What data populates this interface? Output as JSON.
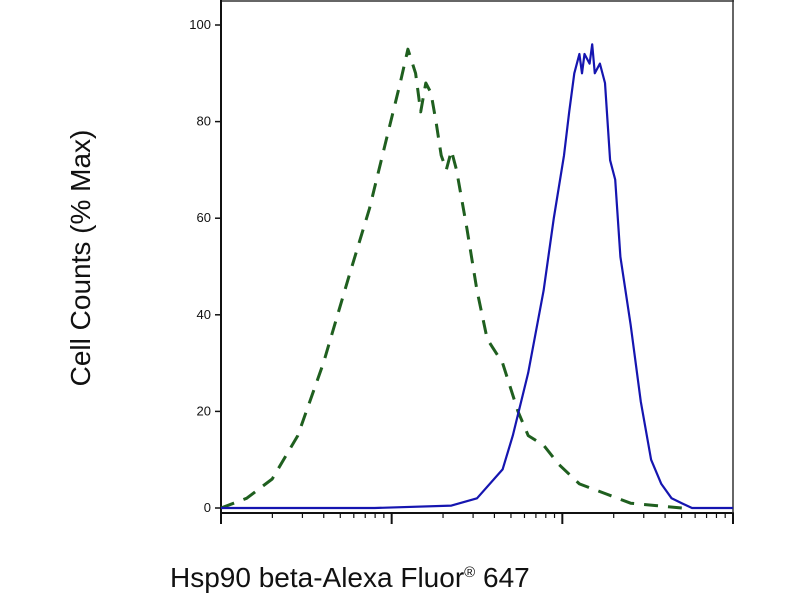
{
  "chart_data": {
    "type": "line",
    "title": "",
    "ylabel": "Cell Counts (% Max)",
    "xlabel": {
      "main": "Hsp90 beta-Alexa Fluor",
      "sup": "®",
      "tail": " 647"
    },
    "ylim": [
      0,
      100
    ],
    "xlim": [
      0,
      1
    ],
    "x_scale": "log",
    "y_ticks": [
      "0",
      "20",
      "40",
      "60",
      "80",
      "100"
    ],
    "grid": false,
    "series": [
      {
        "style": "dashed",
        "color": "#1f5f1f",
        "points": [
          [
            0.0,
            0
          ],
          [
            0.05,
            2
          ],
          [
            0.1,
            6
          ],
          [
            0.15,
            15
          ],
          [
            0.2,
            30
          ],
          [
            0.25,
            48
          ],
          [
            0.29,
            62
          ],
          [
            0.32,
            75
          ],
          [
            0.35,
            88
          ],
          [
            0.365,
            95
          ],
          [
            0.38,
            90
          ],
          [
            0.39,
            82
          ],
          [
            0.4,
            88
          ],
          [
            0.41,
            86
          ],
          [
            0.42,
            80
          ],
          [
            0.43,
            73
          ],
          [
            0.44,
            70
          ],
          [
            0.45,
            74
          ],
          [
            0.46,
            70
          ],
          [
            0.48,
            58
          ],
          [
            0.5,
            45
          ],
          [
            0.52,
            35
          ],
          [
            0.55,
            30
          ],
          [
            0.58,
            20
          ],
          [
            0.6,
            15
          ],
          [
            0.63,
            13
          ],
          [
            0.66,
            9
          ],
          [
            0.7,
            5
          ],
          [
            0.75,
            3
          ],
          [
            0.8,
            1
          ],
          [
            0.85,
            0.5
          ],
          [
            0.9,
            0
          ]
        ]
      },
      {
        "style": "solid",
        "color": "#1515b0",
        "points": [
          [
            0.0,
            0
          ],
          [
            0.3,
            0
          ],
          [
            0.45,
            0.5
          ],
          [
            0.5,
            2
          ],
          [
            0.55,
            8
          ],
          [
            0.57,
            15
          ],
          [
            0.6,
            28
          ],
          [
            0.63,
            45
          ],
          [
            0.65,
            60
          ],
          [
            0.67,
            73
          ],
          [
            0.68,
            82
          ],
          [
            0.69,
            90
          ],
          [
            0.7,
            94
          ],
          [
            0.705,
            90
          ],
          [
            0.71,
            94
          ],
          [
            0.72,
            92
          ],
          [
            0.725,
            96
          ],
          [
            0.73,
            90
          ],
          [
            0.74,
            92
          ],
          [
            0.75,
            88
          ],
          [
            0.76,
            72
          ],
          [
            0.77,
            68
          ],
          [
            0.78,
            52
          ],
          [
            0.8,
            38
          ],
          [
            0.82,
            22
          ],
          [
            0.84,
            10
          ],
          [
            0.86,
            5
          ],
          [
            0.88,
            2
          ],
          [
            0.9,
            1
          ],
          [
            0.92,
            0
          ],
          [
            1.0,
            0
          ]
        ]
      }
    ]
  }
}
